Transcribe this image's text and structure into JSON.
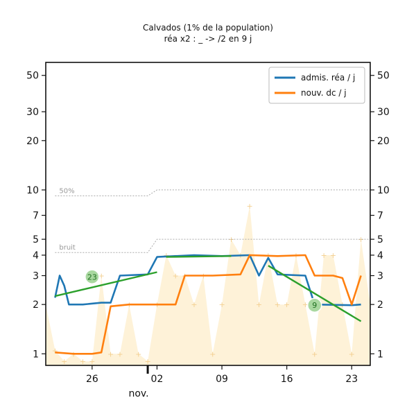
{
  "chart_data": {
    "type": "line",
    "title": "Calvados (1% de la population)",
    "subtitle": "réa x2 : _ -> /2 en 9 j",
    "xlabel": "nov.",
    "y_scale": "log",
    "ylim": [
      0.85,
      60
    ],
    "xlim": [
      "2020-10-21",
      "2020-11-25"
    ],
    "yticks": [
      1,
      2,
      3,
      4,
      5,
      7,
      10,
      20,
      30,
      50
    ],
    "xticks": [
      {
        "date": "2020-10-26",
        "label": "26"
      },
      {
        "date": "2020-11-02",
        "label": "02"
      },
      {
        "date": "2020-11-09",
        "label": "09"
      },
      {
        "date": "2020-11-16",
        "label": "16"
      },
      {
        "date": "2020-11-23",
        "label": "23"
      }
    ],
    "legend_position": "top-right",
    "series": [
      {
        "name": "admis. réa / j",
        "color": "#1f77b4",
        "points": [
          [
            "2020-10-22",
            2.2
          ],
          [
            "2020-10-22T12",
            3.0
          ],
          [
            "2020-10-23",
            2.6
          ],
          [
            "2020-10-23T12",
            2.0
          ],
          [
            "2020-10-25",
            2.0
          ],
          [
            "2020-10-27",
            2.05
          ],
          [
            "2020-10-28",
            2.05
          ],
          [
            "2020-10-29",
            3.0
          ],
          [
            "2020-11-01",
            3.05
          ],
          [
            "2020-11-02",
            3.9
          ],
          [
            "2020-11-06",
            4.0
          ],
          [
            "2020-11-09",
            3.95
          ],
          [
            "2020-11-12",
            4.0
          ],
          [
            "2020-11-13",
            3.0
          ],
          [
            "2020-11-14",
            3.85
          ],
          [
            "2020-11-15",
            3.05
          ],
          [
            "2020-11-18",
            3.0
          ],
          [
            "2020-11-19",
            2.0
          ],
          [
            "2020-11-23",
            1.98
          ],
          [
            "2020-11-24",
            2.0
          ]
        ]
      },
      {
        "name": "nouv. dc / j",
        "color": "#ff7f0e",
        "points": [
          [
            "2020-10-22",
            1.02
          ],
          [
            "2020-10-24",
            1.0
          ],
          [
            "2020-10-26",
            1.0
          ],
          [
            "2020-10-27",
            1.02
          ],
          [
            "2020-10-28",
            1.95
          ],
          [
            "2020-10-30",
            2.0
          ],
          [
            "2020-11-02",
            2.0
          ],
          [
            "2020-11-04",
            2.0
          ],
          [
            "2020-11-05",
            3.0
          ],
          [
            "2020-11-08",
            3.0
          ],
          [
            "2020-11-11",
            3.05
          ],
          [
            "2020-11-12",
            4.0
          ],
          [
            "2020-11-15",
            3.95
          ],
          [
            "2020-11-18",
            4.0
          ],
          [
            "2020-11-19",
            3.0
          ],
          [
            "2020-11-21",
            3.0
          ],
          [
            "2020-11-22",
            2.9
          ],
          [
            "2020-11-23",
            2.0
          ],
          [
            "2020-11-24",
            3.0
          ]
        ]
      }
    ],
    "trend_lines": [
      {
        "color": "#2ca02c",
        "points": [
          [
            "2020-10-22",
            2.25
          ],
          [
            "2020-11-02",
            3.15
          ]
        ],
        "badge": "23",
        "badge_at": [
          "2020-10-26",
          2.95
        ]
      },
      {
        "color": "#2ca02c",
        "points": [
          [
            "2020-11-03",
            3.9
          ],
          [
            "2020-11-10",
            3.95
          ]
        ]
      },
      {
        "color": "#2ca02c",
        "points": [
          [
            "2020-11-14",
            3.45
          ],
          [
            "2020-11-24",
            1.58
          ]
        ],
        "badge": "9",
        "badge_at": [
          "2020-11-19",
          1.98
        ]
      }
    ],
    "reference_lines": [
      {
        "label": "50%",
        "points": [
          [
            "2020-10-22",
            9.2
          ],
          [
            "2020-11-01",
            9.2
          ],
          [
            "2020-11-02",
            10.0
          ],
          [
            "2020-11-25",
            10.0
          ]
        ]
      },
      {
        "label": "bruit",
        "points": [
          [
            "2020-10-22",
            4.15
          ],
          [
            "2020-11-01",
            4.15
          ],
          [
            "2020-11-02",
            5.0
          ],
          [
            "2020-11-25",
            5.0
          ]
        ]
      }
    ],
    "background_fill": {
      "color": "#fdecc8",
      "points": [
        [
          "2020-10-21",
          2.0
        ],
        [
          "2020-10-22",
          1.05
        ],
        [
          "2020-10-23",
          0.9
        ],
        [
          "2020-10-24",
          1.0
        ],
        [
          "2020-10-25",
          0.9
        ],
        [
          "2020-10-26",
          0.9
        ],
        [
          "2020-10-27",
          3.0
        ],
        [
          "2020-10-28",
          1.0
        ],
        [
          "2020-10-29",
          1.0
        ],
        [
          "2020-10-30",
          2.0
        ],
        [
          "2020-10-31",
          1.0
        ],
        [
          "2020-11-01",
          0.9
        ],
        [
          "2020-11-02",
          2.0
        ],
        [
          "2020-11-03",
          4.0
        ],
        [
          "2020-11-04",
          3.0
        ],
        [
          "2020-11-05",
          3.0
        ],
        [
          "2020-11-06",
          2.0
        ],
        [
          "2020-11-07",
          3.0
        ],
        [
          "2020-11-08",
          1.0
        ],
        [
          "2020-11-09",
          2.0
        ],
        [
          "2020-11-10",
          5.0
        ],
        [
          "2020-11-11",
          4.0
        ],
        [
          "2020-11-12",
          8.0
        ],
        [
          "2020-11-13",
          2.0
        ],
        [
          "2020-11-14",
          4.0
        ],
        [
          "2020-11-15",
          2.0
        ],
        [
          "2020-11-16",
          2.0
        ],
        [
          "2020-11-17",
          4.0
        ],
        [
          "2020-11-18",
          2.0
        ],
        [
          "2020-11-19",
          1.0
        ],
        [
          "2020-11-20",
          4.0
        ],
        [
          "2020-11-21",
          4.0
        ],
        [
          "2020-11-22",
          2.0
        ],
        [
          "2020-11-23",
          1.0
        ],
        [
          "2020-11-24",
          5.0
        ],
        [
          "2020-11-25",
          2.0
        ]
      ]
    }
  }
}
